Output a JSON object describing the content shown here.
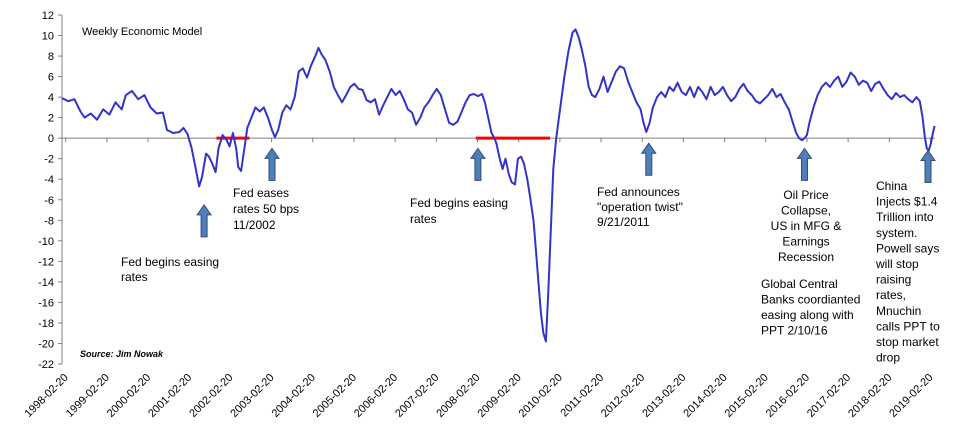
{
  "chart_data": {
    "type": "line",
    "title": "Weekly Economic Model",
    "source": "Source: Jim Nowak",
    "xlabel": "",
    "ylabel": "",
    "ylim": [
      -22,
      12
    ],
    "xlim": [
      1998.05,
      2019.25
    ],
    "grid": false,
    "y_ticks": [
      12,
      10,
      8,
      6,
      4,
      2,
      0,
      -2,
      -4,
      -6,
      -8,
      -10,
      -12,
      -14,
      -16,
      -18,
      -20,
      -22
    ],
    "x_tick_labels": [
      "1998-02-20",
      "1999-02-20",
      "2000-02-20",
      "2001-02-20",
      "2002-02-20",
      "2003-02-20",
      "2004-02-20",
      "2005-02-20",
      "2006-02-20",
      "2007-02-20",
      "2008-02-20",
      "2009-02-20",
      "2010-02-20",
      "2011-02-20",
      "2012-02-20",
      "2013-02-20",
      "2014-02-20",
      "2015-02-20",
      "2016-02-20",
      "2017-02-20",
      "2018-02-20",
      "2019-02-20"
    ],
    "x_tick_values": [
      1998.14,
      1999.14,
      2000.14,
      2001.14,
      2002.14,
      2003.14,
      2004.14,
      2005.14,
      2006.14,
      2007.14,
      2008.14,
      2009.14,
      2010.14,
      2011.14,
      2012.14,
      2013.14,
      2014.14,
      2015.14,
      2016.14,
      2017.14,
      2018.14,
      2019.14
    ],
    "series": [
      {
        "name": "Weekly Economic Model",
        "color": "#3333cc",
        "points": [
          [
            1998.05,
            3.9
          ],
          [
            1998.2,
            3.6
          ],
          [
            1998.35,
            3.8
          ],
          [
            1998.5,
            2.6
          ],
          [
            1998.6,
            2.0
          ],
          [
            1998.75,
            2.4
          ],
          [
            1998.9,
            1.8
          ],
          [
            1999.05,
            2.8
          ],
          [
            1999.2,
            2.3
          ],
          [
            1999.35,
            3.5
          ],
          [
            1999.5,
            2.8
          ],
          [
            1999.6,
            4.2
          ],
          [
            1999.75,
            4.6
          ],
          [
            1999.9,
            3.8
          ],
          [
            2000.05,
            4.2
          ],
          [
            2000.2,
            3.0
          ],
          [
            2000.35,
            2.4
          ],
          [
            2000.5,
            2.5
          ],
          [
            2000.6,
            0.8
          ],
          [
            2000.75,
            0.5
          ],
          [
            2000.9,
            0.6
          ],
          [
            2001.0,
            1.0
          ],
          [
            2001.1,
            0.4
          ],
          [
            2001.2,
            -1.0
          ],
          [
            2001.3,
            -3.0
          ],
          [
            2001.38,
            -4.7
          ],
          [
            2001.45,
            -3.8
          ],
          [
            2001.55,
            -1.5
          ],
          [
            2001.62,
            -1.8
          ],
          [
            2001.7,
            -2.5
          ],
          [
            2001.78,
            -3.3
          ],
          [
            2001.85,
            -1.0
          ],
          [
            2001.95,
            0.3
          ],
          [
            2002.05,
            -0.2
          ],
          [
            2002.12,
            -0.8
          ],
          [
            2002.2,
            0.5
          ],
          [
            2002.28,
            -1.0
          ],
          [
            2002.33,
            -2.8
          ],
          [
            2002.4,
            -3.2
          ],
          [
            2002.48,
            -1.0
          ],
          [
            2002.55,
            1.0
          ],
          [
            2002.65,
            2.0
          ],
          [
            2002.75,
            3.0
          ],
          [
            2002.85,
            2.6
          ],
          [
            2002.95,
            3.0
          ],
          [
            2003.05,
            2.0
          ],
          [
            2003.15,
            0.8
          ],
          [
            2003.22,
            0.1
          ],
          [
            2003.3,
            0.8
          ],
          [
            2003.4,
            2.5
          ],
          [
            2003.5,
            3.2
          ],
          [
            2003.6,
            2.8
          ],
          [
            2003.7,
            4.0
          ],
          [
            2003.8,
            6.5
          ],
          [
            2003.9,
            6.8
          ],
          [
            2004.0,
            5.9
          ],
          [
            2004.1,
            7.1
          ],
          [
            2004.2,
            8.0
          ],
          [
            2004.28,
            8.8
          ],
          [
            2004.35,
            8.2
          ],
          [
            2004.45,
            7.6
          ],
          [
            2004.55,
            6.5
          ],
          [
            2004.65,
            5.0
          ],
          [
            2004.75,
            4.2
          ],
          [
            2004.85,
            3.5
          ],
          [
            2004.95,
            4.2
          ],
          [
            2005.05,
            5.0
          ],
          [
            2005.15,
            5.3
          ],
          [
            2005.25,
            4.8
          ],
          [
            2005.35,
            4.7
          ],
          [
            2005.45,
            3.7
          ],
          [
            2005.55,
            3.5
          ],
          [
            2005.65,
            3.8
          ],
          [
            2005.75,
            2.3
          ],
          [
            2005.85,
            3.2
          ],
          [
            2005.95,
            4.0
          ],
          [
            2006.05,
            4.8
          ],
          [
            2006.15,
            4.2
          ],
          [
            2006.25,
            4.6
          ],
          [
            2006.35,
            3.8
          ],
          [
            2006.45,
            2.8
          ],
          [
            2006.55,
            2.5
          ],
          [
            2006.65,
            1.3
          ],
          [
            2006.75,
            2.0
          ],
          [
            2006.85,
            3.0
          ],
          [
            2006.95,
            3.5
          ],
          [
            2007.05,
            4.2
          ],
          [
            2007.15,
            4.8
          ],
          [
            2007.25,
            4.2
          ],
          [
            2007.35,
            2.8
          ],
          [
            2007.45,
            1.5
          ],
          [
            2007.55,
            1.3
          ],
          [
            2007.65,
            1.6
          ],
          [
            2007.75,
            2.5
          ],
          [
            2007.85,
            3.5
          ],
          [
            2007.95,
            4.2
          ],
          [
            2008.05,
            4.3
          ],
          [
            2008.15,
            4.1
          ],
          [
            2008.25,
            4.3
          ],
          [
            2008.32,
            3.5
          ],
          [
            2008.4,
            2.0
          ],
          [
            2008.48,
            0.5
          ],
          [
            2008.55,
            0.0
          ],
          [
            2008.6,
            -0.5
          ],
          [
            2008.68,
            -2.0
          ],
          [
            2008.75,
            -3.0
          ],
          [
            2008.82,
            -2.0
          ],
          [
            2008.9,
            -3.5
          ],
          [
            2008.97,
            -4.3
          ],
          [
            2009.05,
            -4.5
          ],
          [
            2009.12,
            -2.0
          ],
          [
            2009.2,
            -1.8
          ],
          [
            2009.27,
            -2.5
          ],
          [
            2009.35,
            -4.0
          ],
          [
            2009.42,
            -5.8
          ],
          [
            2009.5,
            -8.0
          ],
          [
            2009.56,
            -11.0
          ],
          [
            2009.62,
            -14.0
          ],
          [
            2009.68,
            -17.0
          ],
          [
            2009.74,
            -19.0
          ],
          [
            2009.8,
            -19.8
          ],
          [
            2009.86,
            -15.0
          ],
          [
            2009.92,
            -9.0
          ],
          [
            2009.98,
            -3.0
          ],
          [
            2010.05,
            0.0
          ],
          [
            2010.15,
            3.0
          ],
          [
            2010.25,
            6.0
          ],
          [
            2010.35,
            8.5
          ],
          [
            2010.45,
            10.3
          ],
          [
            2010.52,
            10.6
          ],
          [
            2010.6,
            9.8
          ],
          [
            2010.68,
            8.5
          ],
          [
            2010.76,
            7.0
          ],
          [
            2010.84,
            5.0
          ],
          [
            2010.92,
            4.2
          ],
          [
            2011.0,
            4.0
          ],
          [
            2011.1,
            4.8
          ],
          [
            2011.2,
            6.0
          ],
          [
            2011.3,
            4.5
          ],
          [
            2011.4,
            5.5
          ],
          [
            2011.5,
            6.5
          ],
          [
            2011.6,
            7.0
          ],
          [
            2011.7,
            6.8
          ],
          [
            2011.8,
            5.5
          ],
          [
            2011.9,
            4.5
          ],
          [
            2012.0,
            3.5
          ],
          [
            2012.1,
            2.8
          ],
          [
            2012.17,
            1.5
          ],
          [
            2012.24,
            0.6
          ],
          [
            2012.32,
            1.5
          ],
          [
            2012.4,
            3.0
          ],
          [
            2012.5,
            4.0
          ],
          [
            2012.6,
            4.5
          ],
          [
            2012.7,
            4.0
          ],
          [
            2012.8,
            5.0
          ],
          [
            2012.9,
            4.6
          ],
          [
            2013.0,
            5.4
          ],
          [
            2013.1,
            4.5
          ],
          [
            2013.2,
            4.2
          ],
          [
            2013.3,
            5.0
          ],
          [
            2013.4,
            4.0
          ],
          [
            2013.5,
            5.0
          ],
          [
            2013.6,
            4.5
          ],
          [
            2013.7,
            3.8
          ],
          [
            2013.8,
            5.0
          ],
          [
            2013.9,
            4.2
          ],
          [
            2014.0,
            4.5
          ],
          [
            2014.1,
            5.0
          ],
          [
            2014.2,
            4.2
          ],
          [
            2014.3,
            3.6
          ],
          [
            2014.4,
            4.0
          ],
          [
            2014.5,
            4.8
          ],
          [
            2014.6,
            5.3
          ],
          [
            2014.7,
            4.6
          ],
          [
            2014.8,
            4.2
          ],
          [
            2014.9,
            3.6
          ],
          [
            2015.0,
            3.4
          ],
          [
            2015.1,
            3.8
          ],
          [
            2015.2,
            4.2
          ],
          [
            2015.3,
            4.8
          ],
          [
            2015.4,
            4.0
          ],
          [
            2015.5,
            4.3
          ],
          [
            2015.6,
            3.5
          ],
          [
            2015.7,
            2.8
          ],
          [
            2015.8,
            1.5
          ],
          [
            2015.88,
            0.5
          ],
          [
            2015.95,
            0.0
          ],
          [
            2016.02,
            -0.2
          ],
          [
            2016.08,
            0.0
          ],
          [
            2016.14,
            0.3
          ],
          [
            2016.2,
            1.5
          ],
          [
            2016.3,
            3.0
          ],
          [
            2016.4,
            4.2
          ],
          [
            2016.5,
            5.0
          ],
          [
            2016.6,
            5.4
          ],
          [
            2016.7,
            5.0
          ],
          [
            2016.8,
            5.6
          ],
          [
            2016.9,
            6.0
          ],
          [
            2017.0,
            5.0
          ],
          [
            2017.1,
            5.5
          ],
          [
            2017.2,
            6.4
          ],
          [
            2017.3,
            6.0
          ],
          [
            2017.4,
            5.2
          ],
          [
            2017.5,
            5.6
          ],
          [
            2017.6,
            5.4
          ],
          [
            2017.7,
            4.6
          ],
          [
            2017.8,
            5.3
          ],
          [
            2017.9,
            5.5
          ],
          [
            2018.0,
            4.8
          ],
          [
            2018.1,
            4.2
          ],
          [
            2018.2,
            3.8
          ],
          [
            2018.3,
            4.4
          ],
          [
            2018.4,
            4.0
          ],
          [
            2018.5,
            4.2
          ],
          [
            2018.6,
            3.8
          ],
          [
            2018.7,
            3.5
          ],
          [
            2018.8,
            4.0
          ],
          [
            2018.88,
            3.6
          ],
          [
            2018.95,
            2.0
          ],
          [
            2019.0,
            0.2
          ],
          [
            2019.05,
            -1.0
          ],
          [
            2019.1,
            -1.2
          ],
          [
            2019.15,
            -0.5
          ],
          [
            2019.2,
            0.5
          ],
          [
            2019.24,
            1.2
          ]
        ]
      }
    ],
    "zero_bands": [
      {
        "x_start": 2001.8,
        "x_end": 2002.6,
        "y": 0,
        "color": "#ff0000"
      },
      {
        "x_start": 2008.1,
        "x_end": 2009.9,
        "y": 0,
        "color": "#ff0000"
      }
    ],
    "annotations": [
      {
        "id": "fed-easing-2001",
        "arrow_x": 2001.5,
        "arrow_y": -6.5,
        "lines": [
          "Fed begins easing",
          "rates"
        ]
      },
      {
        "id": "fed-eases-2002",
        "arrow_x": 2003.15,
        "arrow_y": -1.0,
        "lines": [
          "Fed eases",
          "rates 50 bps",
          "11/2002"
        ]
      },
      {
        "id": "fed-easing-2008",
        "arrow_x": 2008.15,
        "arrow_y": -1.0,
        "lines": [
          "Fed begins easing",
          "rates"
        ]
      },
      {
        "id": "operation-twist",
        "arrow_x": 2012.3,
        "arrow_y": -0.5,
        "lines": [
          "Fed announces",
          "\"operation twist\"",
          "9/21/2011"
        ]
      },
      {
        "id": "oil-price-collapse",
        "arrow_x": 2016.08,
        "arrow_y": -1.0,
        "lines": [
          "Oil Price",
          "Collapse,",
          "US in MFG &",
          "Earnings",
          "Recession"
        ]
      },
      {
        "id": "global-central-banks",
        "arrow_x": null,
        "arrow_y": null,
        "lines": [
          "Global Central",
          "Banks coordianted",
          "easing along with",
          "PPT 2/10/16"
        ]
      },
      {
        "id": "china-injects",
        "arrow_x": 2019.08,
        "arrow_y": -1.2,
        "lines": [
          "China",
          "Injects $1.4",
          "Trillion into",
          "system.",
          "Powell says",
          "will stop",
          "raising",
          "rates,",
          "Mnuchin",
          "calls PPT to",
          "stop market",
          "drop"
        ]
      }
    ]
  },
  "colors": {
    "line": "#3333cc",
    "zero_band": "#ff0000",
    "arrow_fill": "#4f7eb8",
    "arrow_stroke": "#2f4f7a",
    "axis": "#808080"
  }
}
